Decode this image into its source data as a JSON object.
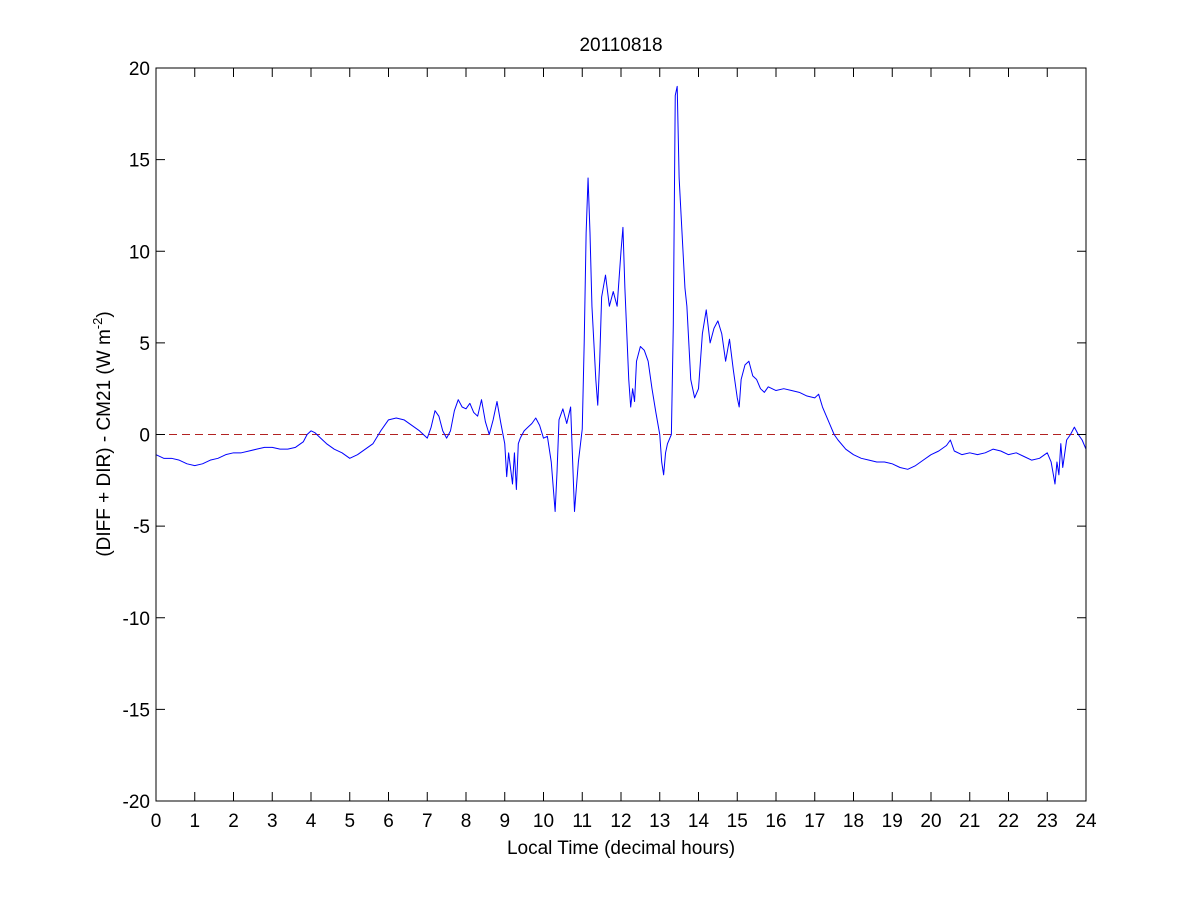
{
  "chart_data": {
    "type": "line",
    "title": "20110818",
    "xlabel": "Local Time (decimal hours)",
    "ylabel": {
      "main": "(DIFF + DIR) - CM21 (W m",
      "superscript": "-2",
      "close": ")"
    },
    "xlim": [
      0,
      24
    ],
    "ylim": [
      -20,
      20
    ],
    "xticks": [
      0,
      1,
      2,
      3,
      4,
      5,
      6,
      7,
      8,
      9,
      10,
      11,
      12,
      13,
      14,
      15,
      16,
      17,
      18,
      19,
      20,
      21,
      22,
      23,
      24
    ],
    "yticks": [
      -20,
      -15,
      -10,
      -5,
      0,
      5,
      10,
      15,
      20
    ],
    "grid": false,
    "colors": {
      "series": "#0000ff",
      "reference": "#b22222"
    },
    "reference_line": {
      "y": 0,
      "style": "dashed"
    },
    "series": [
      {
        "points": [
          [
            0,
            -1.1
          ],
          [
            0.2,
            -1.3
          ],
          [
            0.4,
            -1.3
          ],
          [
            0.6,
            -1.4
          ],
          [
            0.8,
            -1.6
          ],
          [
            1.0,
            -1.7
          ],
          [
            1.2,
            -1.6
          ],
          [
            1.4,
            -1.4
          ],
          [
            1.6,
            -1.3
          ],
          [
            1.8,
            -1.1
          ],
          [
            2.0,
            -1.0
          ],
          [
            2.2,
            -1.0
          ],
          [
            2.4,
            -0.9
          ],
          [
            2.6,
            -0.8
          ],
          [
            2.8,
            -0.7
          ],
          [
            3.0,
            -0.7
          ],
          [
            3.2,
            -0.8
          ],
          [
            3.4,
            -0.8
          ],
          [
            3.6,
            -0.7
          ],
          [
            3.8,
            -0.4
          ],
          [
            3.9,
            0.0
          ],
          [
            4.0,
            0.2
          ],
          [
            4.1,
            0.1
          ],
          [
            4.2,
            -0.1
          ],
          [
            4.4,
            -0.5
          ],
          [
            4.6,
            -0.8
          ],
          [
            4.8,
            -1.0
          ],
          [
            5.0,
            -1.3
          ],
          [
            5.2,
            -1.1
          ],
          [
            5.4,
            -0.8
          ],
          [
            5.6,
            -0.5
          ],
          [
            5.8,
            0.2
          ],
          [
            6.0,
            0.8
          ],
          [
            6.2,
            0.9
          ],
          [
            6.4,
            0.8
          ],
          [
            6.6,
            0.5
          ],
          [
            6.8,
            0.2
          ],
          [
            7.0,
            -0.2
          ],
          [
            7.1,
            0.4
          ],
          [
            7.2,
            1.3
          ],
          [
            7.3,
            1.0
          ],
          [
            7.4,
            0.2
          ],
          [
            7.5,
            -0.2
          ],
          [
            7.6,
            0.2
          ],
          [
            7.7,
            1.3
          ],
          [
            7.8,
            1.9
          ],
          [
            7.9,
            1.5
          ],
          [
            8.0,
            1.4
          ],
          [
            8.1,
            1.7
          ],
          [
            8.2,
            1.2
          ],
          [
            8.3,
            1.0
          ],
          [
            8.4,
            1.9
          ],
          [
            8.5,
            0.7
          ],
          [
            8.6,
            0.0
          ],
          [
            8.7,
            0.8
          ],
          [
            8.8,
            1.8
          ],
          [
            8.9,
            0.6
          ],
          [
            9.0,
            -0.5
          ],
          [
            9.05,
            -2.3
          ],
          [
            9.1,
            -1.0
          ],
          [
            9.2,
            -2.7
          ],
          [
            9.25,
            -1.0
          ],
          [
            9.3,
            -3.0
          ],
          [
            9.35,
            -0.5
          ],
          [
            9.4,
            -0.2
          ],
          [
            9.5,
            0.2
          ],
          [
            9.6,
            0.4
          ],
          [
            9.7,
            0.6
          ],
          [
            9.8,
            0.9
          ],
          [
            9.9,
            0.5
          ],
          [
            10.0,
            -0.2
          ],
          [
            10.1,
            -0.1
          ],
          [
            10.2,
            -1.5
          ],
          [
            10.3,
            -4.2
          ],
          [
            10.35,
            -2.0
          ],
          [
            10.4,
            0.8
          ],
          [
            10.5,
            1.4
          ],
          [
            10.6,
            0.6
          ],
          [
            10.7,
            1.5
          ],
          [
            10.8,
            -4.2
          ],
          [
            10.9,
            -1.5
          ],
          [
            11.0,
            0.3
          ],
          [
            11.05,
            5.0
          ],
          [
            11.1,
            11.0
          ],
          [
            11.15,
            14.0
          ],
          [
            11.2,
            11.0
          ],
          [
            11.25,
            7.0
          ],
          [
            11.3,
            5.0
          ],
          [
            11.35,
            3.0
          ],
          [
            11.4,
            1.6
          ],
          [
            11.45,
            4.0
          ],
          [
            11.5,
            7.5
          ],
          [
            11.6,
            8.7
          ],
          [
            11.7,
            7.0
          ],
          [
            11.8,
            7.8
          ],
          [
            11.9,
            7.0
          ],
          [
            12.0,
            10.0
          ],
          [
            12.05,
            11.3
          ],
          [
            12.1,
            8.0
          ],
          [
            12.2,
            3.0
          ],
          [
            12.25,
            1.5
          ],
          [
            12.3,
            2.5
          ],
          [
            12.35,
            1.8
          ],
          [
            12.4,
            4.0
          ],
          [
            12.5,
            4.8
          ],
          [
            12.6,
            4.6
          ],
          [
            12.7,
            4.0
          ],
          [
            12.8,
            2.5
          ],
          [
            12.9,
            1.2
          ],
          [
            13.0,
            0.0
          ],
          [
            13.05,
            -1.5
          ],
          [
            13.1,
            -2.2
          ],
          [
            13.15,
            -1.0
          ],
          [
            13.2,
            -0.5
          ],
          [
            13.3,
            0.0
          ],
          [
            13.35,
            6.0
          ],
          [
            13.4,
            18.5
          ],
          [
            13.45,
            19.0
          ],
          [
            13.5,
            14.0
          ],
          [
            13.55,
            12.0
          ],
          [
            13.6,
            10.0
          ],
          [
            13.65,
            8.0
          ],
          [
            13.7,
            7.0
          ],
          [
            13.8,
            3.0
          ],
          [
            13.9,
            2.0
          ],
          [
            14.0,
            2.5
          ],
          [
            14.1,
            5.5
          ],
          [
            14.2,
            6.8
          ],
          [
            14.3,
            5.0
          ],
          [
            14.4,
            5.8
          ],
          [
            14.5,
            6.2
          ],
          [
            14.6,
            5.5
          ],
          [
            14.7,
            4.0
          ],
          [
            14.8,
            5.2
          ],
          [
            14.9,
            3.5
          ],
          [
            15.0,
            2.0
          ],
          [
            15.05,
            1.5
          ],
          [
            15.1,
            3.0
          ],
          [
            15.2,
            3.8
          ],
          [
            15.3,
            4.0
          ],
          [
            15.4,
            3.2
          ],
          [
            15.5,
            3.0
          ],
          [
            15.6,
            2.5
          ],
          [
            15.7,
            2.3
          ],
          [
            15.8,
            2.6
          ],
          [
            16.0,
            2.4
          ],
          [
            16.2,
            2.5
          ],
          [
            16.4,
            2.4
          ],
          [
            16.6,
            2.3
          ],
          [
            16.8,
            2.1
          ],
          [
            17.0,
            2.0
          ],
          [
            17.1,
            2.2
          ],
          [
            17.2,
            1.5
          ],
          [
            17.3,
            1.0
          ],
          [
            17.4,
            0.5
          ],
          [
            17.5,
            0.0
          ],
          [
            17.6,
            -0.3
          ],
          [
            17.8,
            -0.8
          ],
          [
            18.0,
            -1.1
          ],
          [
            18.2,
            -1.3
          ],
          [
            18.4,
            -1.4
          ],
          [
            18.6,
            -1.5
          ],
          [
            18.8,
            -1.5
          ],
          [
            19.0,
            -1.6
          ],
          [
            19.2,
            -1.8
          ],
          [
            19.4,
            -1.9
          ],
          [
            19.6,
            -1.7
          ],
          [
            19.8,
            -1.4
          ],
          [
            20.0,
            -1.1
          ],
          [
            20.2,
            -0.9
          ],
          [
            20.4,
            -0.6
          ],
          [
            20.5,
            -0.3
          ],
          [
            20.6,
            -0.9
          ],
          [
            20.8,
            -1.1
          ],
          [
            21.0,
            -1.0
          ],
          [
            21.2,
            -1.1
          ],
          [
            21.4,
            -1.0
          ],
          [
            21.6,
            -0.8
          ],
          [
            21.8,
            -0.9
          ],
          [
            22.0,
            -1.1
          ],
          [
            22.2,
            -1.0
          ],
          [
            22.4,
            -1.2
          ],
          [
            22.6,
            -1.4
          ],
          [
            22.8,
            -1.3
          ],
          [
            23.0,
            -1.0
          ],
          [
            23.1,
            -1.5
          ],
          [
            23.2,
            -2.7
          ],
          [
            23.25,
            -1.5
          ],
          [
            23.3,
            -2.2
          ],
          [
            23.35,
            -0.5
          ],
          [
            23.4,
            -1.8
          ],
          [
            23.5,
            -0.3
          ],
          [
            23.6,
            0.0
          ],
          [
            23.7,
            0.4
          ],
          [
            23.8,
            0.0
          ],
          [
            23.9,
            -0.3
          ],
          [
            24.0,
            -0.8
          ]
        ]
      }
    ]
  }
}
